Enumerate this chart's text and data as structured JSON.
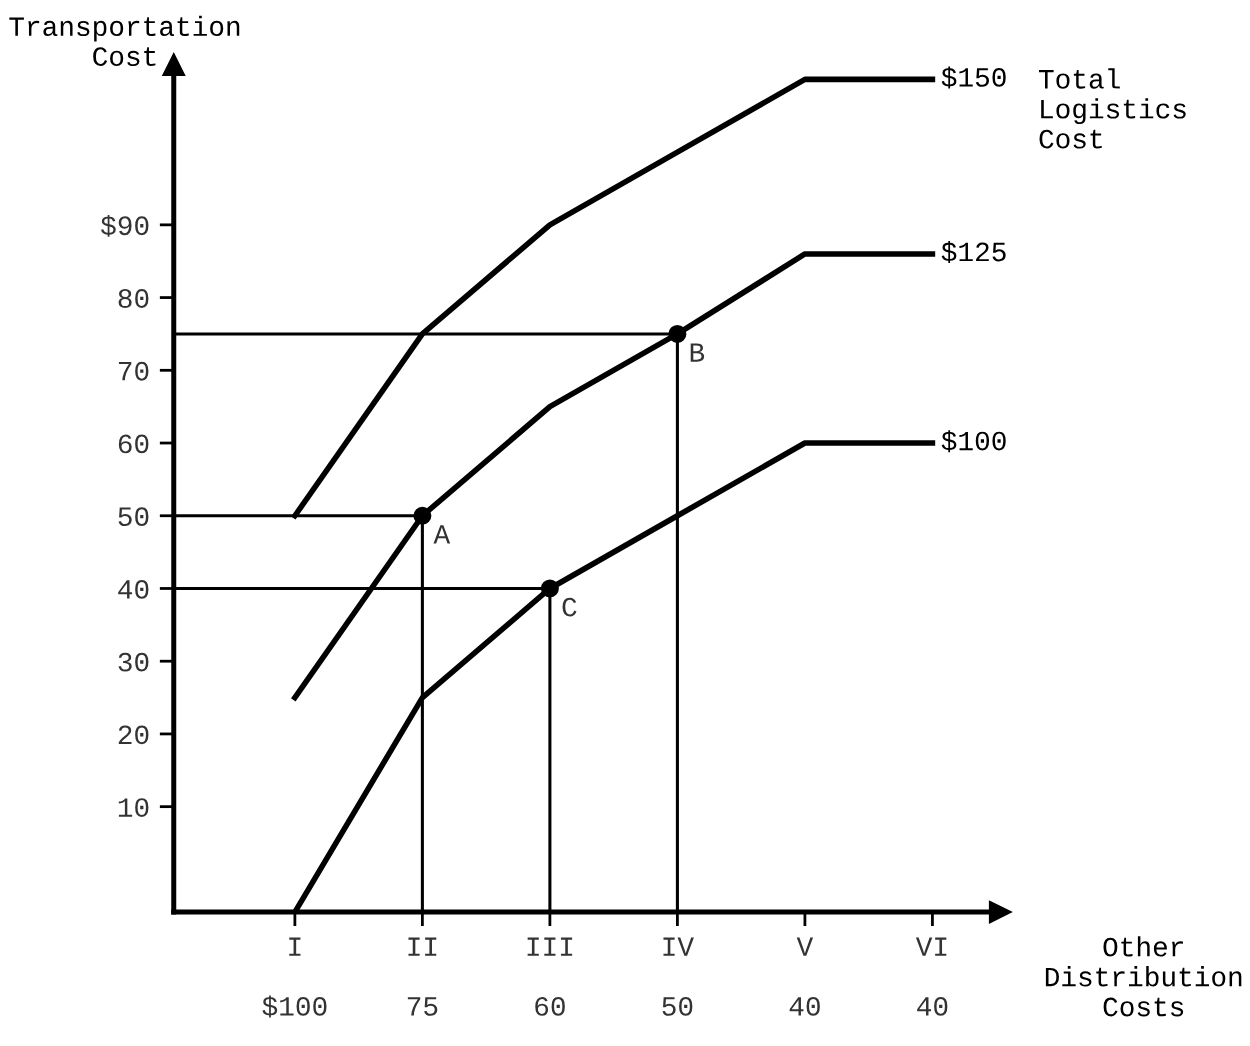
{
  "chart_data": {
    "type": "line",
    "ylabel": "Transportation\nCost",
    "categories": [
      "I",
      "II",
      "III",
      "IV",
      "V",
      "VI"
    ],
    "ylim": [
      -4.5,
      112
    ],
    "yticks": [
      10,
      20,
      30,
      40,
      50,
      60,
      70,
      80,
      {
        "value": 90,
        "label": "$90"
      }
    ],
    "grid": false,
    "legend": false,
    "marker": "none",
    "line_style": "solid",
    "series": [
      {
        "name": "$150",
        "color": "#000000",
        "values": [
          50,
          75,
          90,
          100,
          110,
          110
        ]
      },
      {
        "name": "$125",
        "color": "#000000",
        "values": [
          25,
          50,
          65,
          75,
          86,
          86
        ]
      },
      {
        "name": "$100",
        "color": "#000000",
        "values": [
          -4.5,
          25,
          40,
          50,
          60,
          60
        ]
      },
      {
        "type": "scatter",
        "marker": "circle",
        "color": "#000000",
        "values": [
          null,
          50,
          40,
          75,
          null,
          null
        ]
      }
    ],
    "ref_lines": [
      {
        "axis": "y",
        "value": 50,
        "color": "#000000"
      },
      {
        "axis": "y",
        "value": 40,
        "color": "#000000"
      },
      {
        "axis": "y",
        "value": 75,
        "color": "#000000"
      },
      {
        "axis": "x",
        "value": "II",
        "color": "#000000"
      },
      {
        "axis": "x",
        "value": "III",
        "color": "#000000"
      },
      {
        "axis": "x",
        "value": "IV",
        "color": "#000000"
      }
    ],
    "annotations": [
      {
        "text": "A",
        "x": "II",
        "y": 50
      },
      {
        "text": "B",
        "x": "IV",
        "y": 75
      },
      {
        "text": "C",
        "x": "III",
        "y": 40
      },
      "Total\nLogistics\nCost",
      "Other\nDistribution\nCosts",
      "$100",
      "75",
      "60",
      "50",
      "40",
      "40"
    ]
  }
}
